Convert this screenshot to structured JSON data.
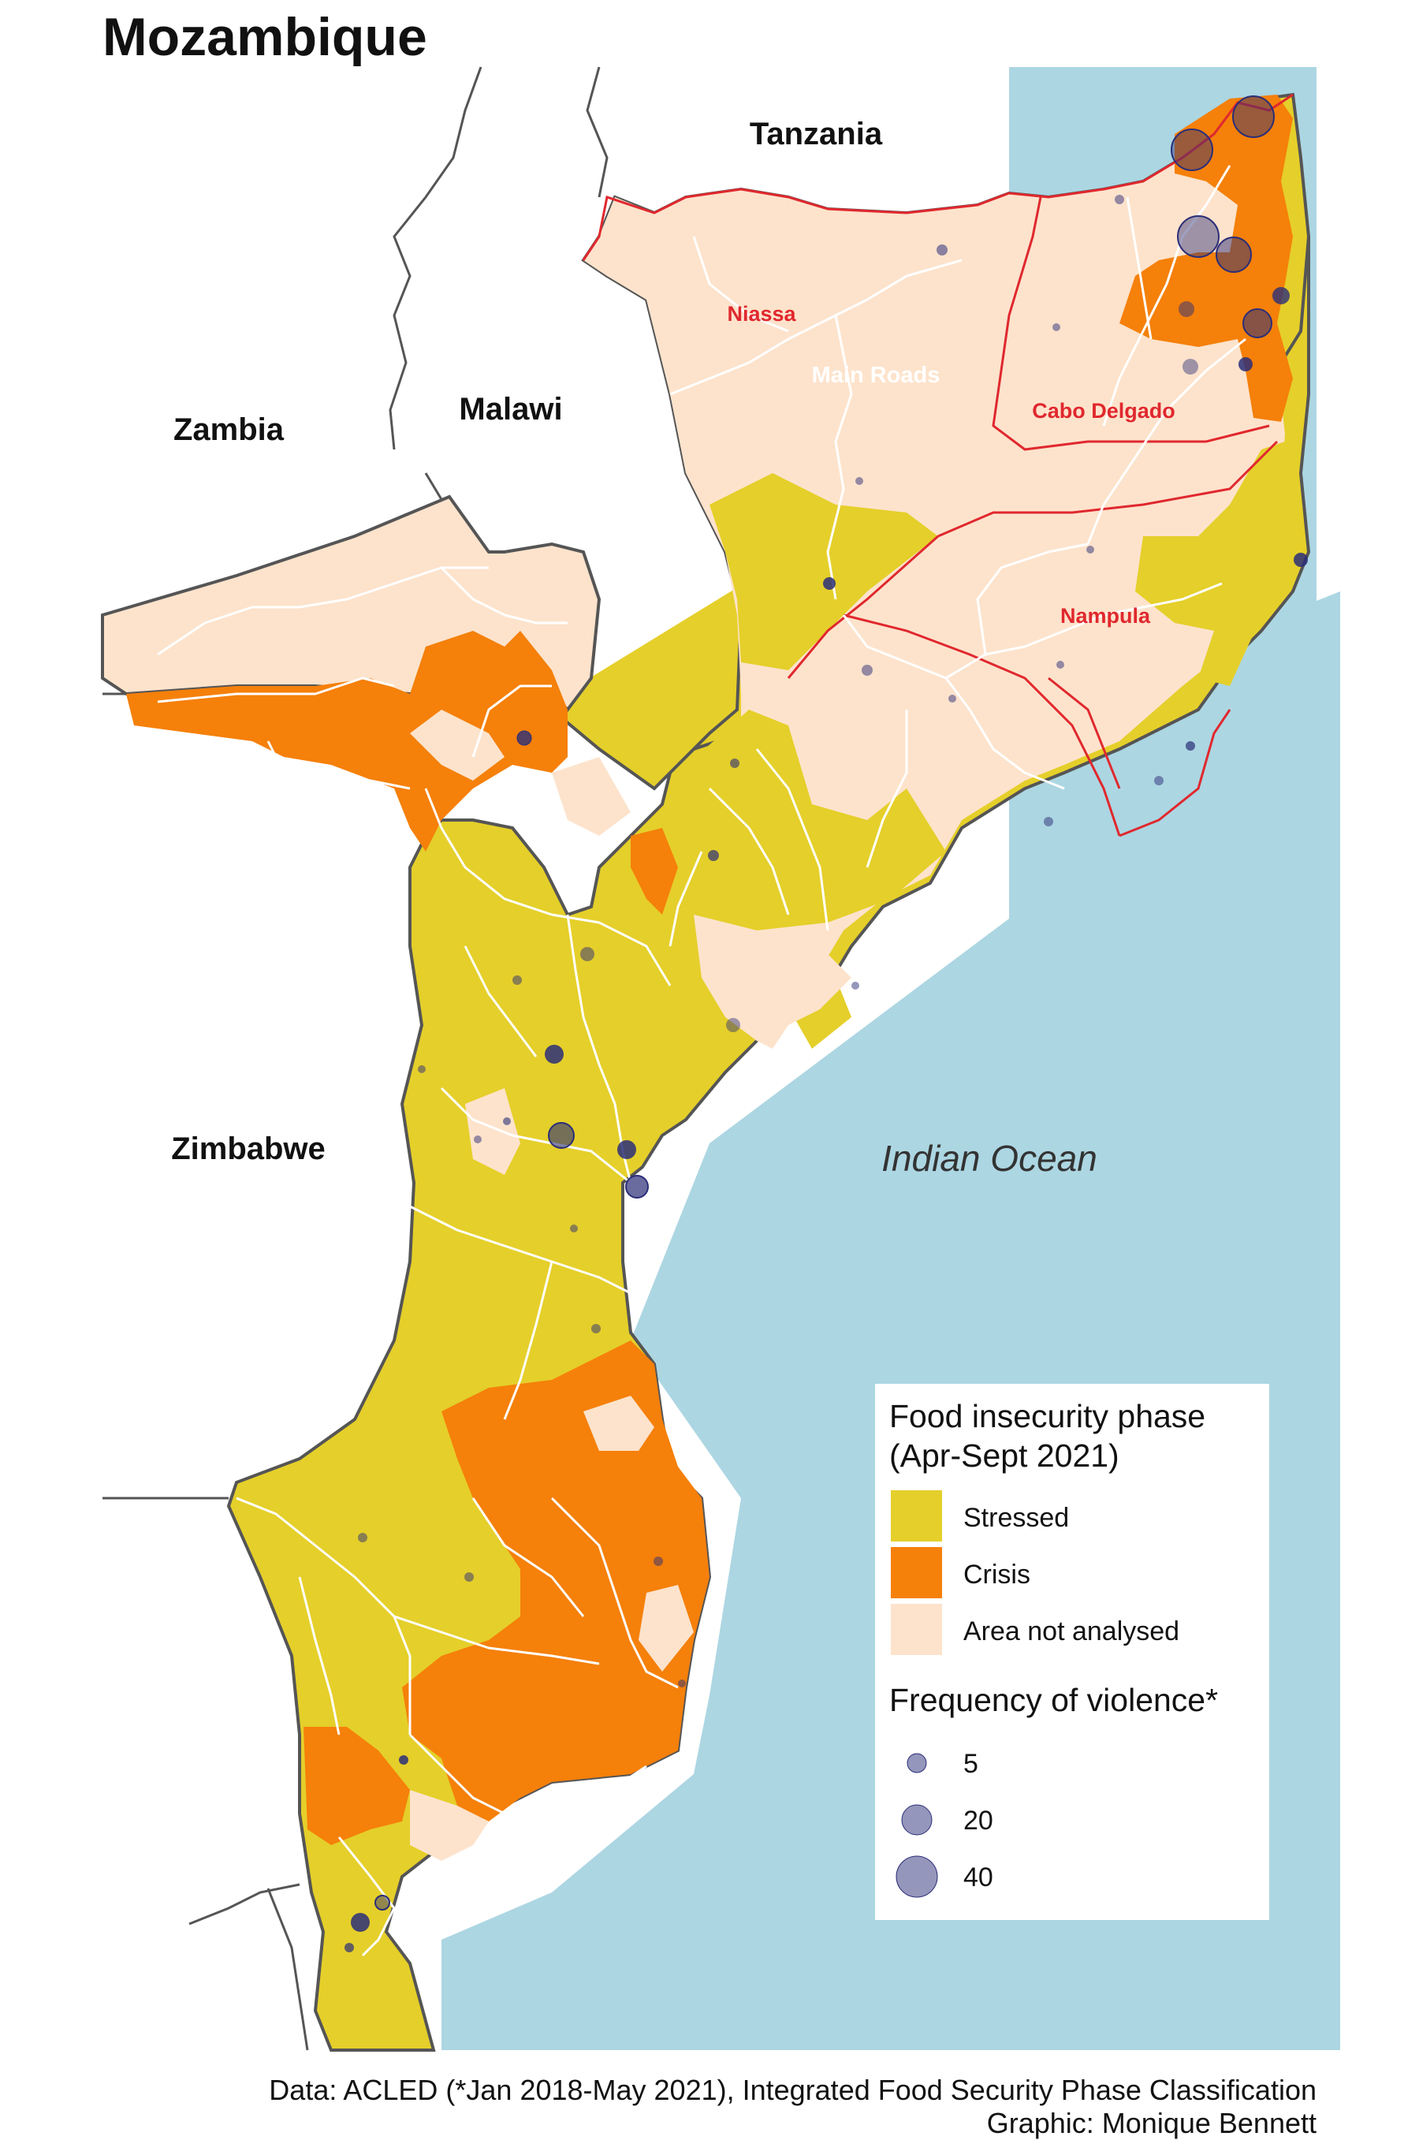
{
  "title": "Mozambique",
  "countries": {
    "tanzania": "Tanzania",
    "zambia": "Zambia",
    "malawi": "Malawi",
    "zimbabwe": "Zimbabwe"
  },
  "water": {
    "ocean": "Indian Ocean"
  },
  "provinces": {
    "niassa": "Niassa",
    "cabo_delgado": "Cabo Delgado",
    "nampula": "Nampula"
  },
  "roads_label": "Main Roads",
  "legend": {
    "phase_title_line1": "Food insecurity phase",
    "phase_title_line2": "(Apr-Sept 2021)",
    "phases": [
      {
        "label": "Stressed",
        "color": "#e5cf2a"
      },
      {
        "label": "Crisis",
        "color": "#f5800a"
      },
      {
        "label": "Area not analysed",
        "color": "#fde3cc"
      }
    ],
    "violence_title": "Frequency of violence*",
    "violence_sizes": [
      "5",
      "20",
      "40"
    ]
  },
  "colors": {
    "ocean": "#acd6e2",
    "border": "#555555",
    "province_border": "#e0282e",
    "roads": "#ffffff",
    "dot": "#2b2e78",
    "province_label": "#e0282e"
  },
  "caption": {
    "line1": "Data: ACLED (*Jan 2018-May 2021), Integrated Food Security Phase Classification",
    "line2": "Graphic: Monique Bennett"
  }
}
